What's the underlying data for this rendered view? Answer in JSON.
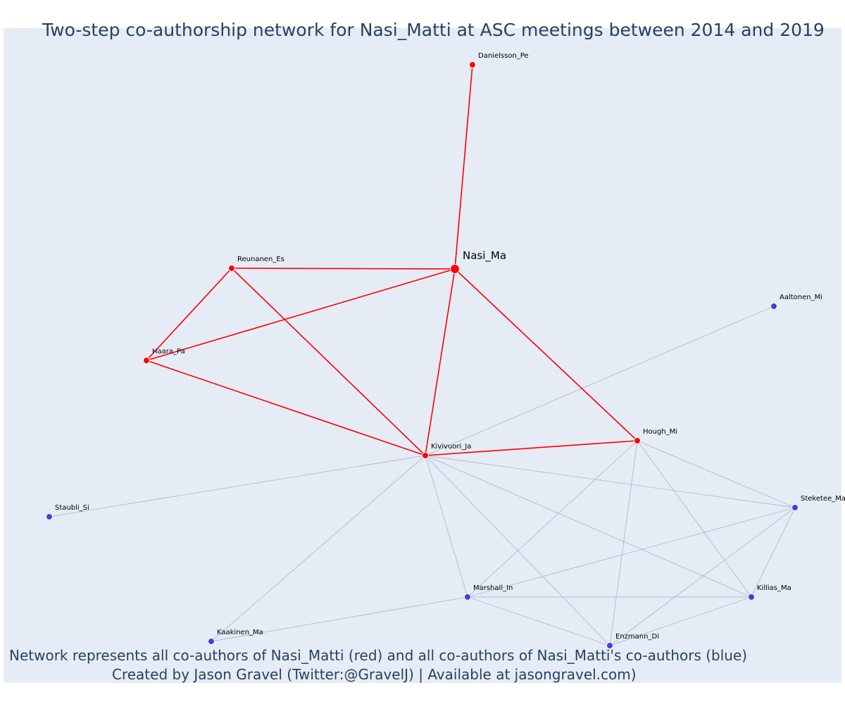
{
  "title": "Two-step co-authorship network for Nasi_Matti at ASC meetings between 2014 and 2019",
  "caption": {
    "line1": "Network represents all co-authors of Nasi_Matti (red) and all co-authors of Nasi_Matti's co-authors (blue)",
    "line2": "Created by Jason Gravel (Twitter:@GravelJ) | Available at jasongravel.com)"
  },
  "colors": {
    "background": "#e5ecf6",
    "first_step": "#ff0000",
    "second_step": "#3f3fe6",
    "second_step_edge": "#b4b8cc",
    "text": "#2a3f5f"
  },
  "chart_data": {
    "type": "network",
    "nodes": [
      {
        "id": "Nasi_Ma",
        "group": "focal"
      },
      {
        "id": "Danielsson_Pe",
        "group": "co-author"
      },
      {
        "id": "Reunanen_Es",
        "group": "co-author"
      },
      {
        "id": "Haara_Pa",
        "group": "co-author"
      },
      {
        "id": "Kivivuori_Ja",
        "group": "co-author"
      },
      {
        "id": "Hough_Mi",
        "group": "co-author"
      },
      {
        "id": "Aaltonen_Mi",
        "group": "second-step"
      },
      {
        "id": "Staubli_Si",
        "group": "second-step"
      },
      {
        "id": "Steketee_Ma",
        "group": "second-step"
      },
      {
        "id": "Marshall_In",
        "group": "second-step"
      },
      {
        "id": "Killias_Ma",
        "group": "second-step"
      },
      {
        "id": "Kaakinen_Ma",
        "group": "second-step"
      },
      {
        "id": "Enzmann_Di",
        "group": "second-step"
      }
    ],
    "edges": [
      [
        "Nasi_Ma",
        "Danielsson_Pe",
        "first"
      ],
      [
        "Nasi_Ma",
        "Reunanen_Es",
        "first"
      ],
      [
        "Nasi_Ma",
        "Haara_Pa",
        "first"
      ],
      [
        "Nasi_Ma",
        "Kivivuori_Ja",
        "first"
      ],
      [
        "Nasi_Ma",
        "Hough_Mi",
        "first"
      ],
      [
        "Reunanen_Es",
        "Haara_Pa",
        "first"
      ],
      [
        "Reunanen_Es",
        "Kivivuori_Ja",
        "first"
      ],
      [
        "Haara_Pa",
        "Kivivuori_Ja",
        "first"
      ],
      [
        "Kivivuori_Ja",
        "Hough_Mi",
        "first"
      ],
      [
        "Kivivuori_Ja",
        "Aaltonen_Mi",
        "second"
      ],
      [
        "Kivivuori_Ja",
        "Staubli_Si",
        "second"
      ],
      [
        "Kivivuori_Ja",
        "Steketee_Ma",
        "second"
      ],
      [
        "Kivivuori_Ja",
        "Marshall_In",
        "second"
      ],
      [
        "Kivivuori_Ja",
        "Killias_Ma",
        "second"
      ],
      [
        "Kivivuori_Ja",
        "Kaakinen_Ma",
        "second"
      ],
      [
        "Kivivuori_Ja",
        "Enzmann_Di",
        "second"
      ],
      [
        "Hough_Mi",
        "Steketee_Ma",
        "second"
      ],
      [
        "Hough_Mi",
        "Marshall_In",
        "second"
      ],
      [
        "Hough_Mi",
        "Killias_Ma",
        "second"
      ],
      [
        "Hough_Mi",
        "Enzmann_Di",
        "second"
      ],
      [
        "Steketee_Ma",
        "Marshall_In",
        "second"
      ],
      [
        "Steketee_Ma",
        "Killias_Ma",
        "second"
      ],
      [
        "Steketee_Ma",
        "Enzmann_Di",
        "second"
      ],
      [
        "Marshall_In",
        "Killias_Ma",
        "second"
      ],
      [
        "Marshall_In",
        "Enzmann_Di",
        "second"
      ],
      [
        "Marshall_In",
        "Kaakinen_Ma",
        "second"
      ],
      [
        "Killias_Ma",
        "Enzmann_Di",
        "second"
      ]
    ]
  }
}
